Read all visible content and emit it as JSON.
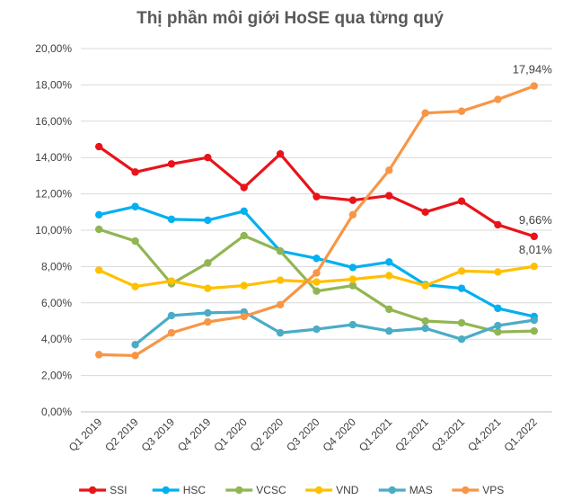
{
  "chart_data": {
    "type": "line",
    "title": "Thị phần môi giới HoSE qua từng quý",
    "xlabel": "",
    "ylabel": "",
    "ylim": [
      0,
      20
    ],
    "y_ticks": [
      "0,00%",
      "2,00%",
      "4,00%",
      "6,00%",
      "8,00%",
      "10,00%",
      "12,00%",
      "14,00%",
      "16,00%",
      "18,00%",
      "20,00%"
    ],
    "categories": [
      "Q1 2019",
      "Q2 2019",
      "Q3 2019",
      "Q4 2019",
      "Q1 2020",
      "Q2 2020",
      "Q3 2020",
      "Q4 2020",
      "Q1.2021",
      "Q2.2021",
      "Q3.2021",
      "Q4.2021",
      "Q1.2022"
    ],
    "grid": "horizontal",
    "legend_position": "bottom",
    "series": [
      {
        "name": "SSI",
        "color": "#e8141b",
        "values": [
          14.6,
          13.2,
          13.65,
          14.0,
          12.35,
          14.2,
          11.85,
          11.65,
          11.9,
          11.0,
          11.6,
          10.3,
          9.66
        ]
      },
      {
        "name": "HSC",
        "color": "#00b0f0",
        "values": [
          10.85,
          11.3,
          10.6,
          10.55,
          11.05,
          8.85,
          8.45,
          7.95,
          8.25,
          7.0,
          6.8,
          5.7,
          5.25
        ]
      },
      {
        "name": "VCSC",
        "color": "#92b553",
        "values": [
          10.05,
          9.4,
          7.05,
          8.2,
          9.7,
          8.85,
          6.65,
          6.95,
          5.65,
          5.0,
          4.9,
          4.4,
          4.45
        ]
      },
      {
        "name": "VND",
        "color": "#ffc000",
        "values": [
          7.8,
          6.9,
          7.2,
          6.8,
          6.95,
          7.25,
          7.15,
          7.3,
          7.5,
          6.95,
          7.75,
          7.7,
          8.01
        ]
      },
      {
        "name": "MAS",
        "color": "#4bacc6",
        "values": [
          null,
          3.7,
          5.3,
          5.45,
          5.5,
          4.35,
          4.55,
          4.8,
          4.45,
          4.6,
          4.0,
          4.75,
          5.05
        ]
      },
      {
        "name": "VPS",
        "color": "#f79646",
        "values": [
          3.15,
          3.1,
          4.35,
          4.95,
          5.25,
          5.9,
          7.65,
          10.85,
          13.3,
          16.45,
          16.55,
          17.2,
          17.94
        ]
      }
    ],
    "data_labels": [
      {
        "series": "VPS",
        "index": 12,
        "text": "17,94%"
      },
      {
        "series": "SSI",
        "index": 12,
        "text": "9,66%"
      },
      {
        "series": "VND",
        "index": 12,
        "text": "8,01%"
      }
    ]
  }
}
